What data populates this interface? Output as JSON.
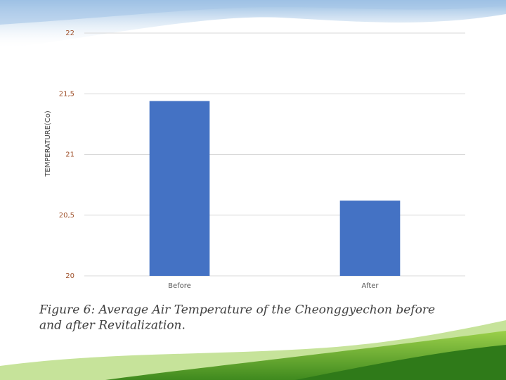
{
  "chart_data": {
    "type": "bar",
    "y_label": "TEMPERATURE(Co)",
    "caption_lines": [
      "Figure 6: Average Air Temperature of the Cheonggyechon before",
      "and after Revitalization."
    ],
    "categories": [
      "Before",
      "After"
    ],
    "values": [
      21.44,
      20.62
    ],
    "color": "#4472c4",
    "ylim": [
      20,
      22
    ],
    "yticks": [
      20,
      {
        "value": 20.5,
        "label": "20,5"
      },
      21,
      {
        "value": 21.5,
        "label": "21,5"
      },
      22
    ],
    "grid": true
  }
}
